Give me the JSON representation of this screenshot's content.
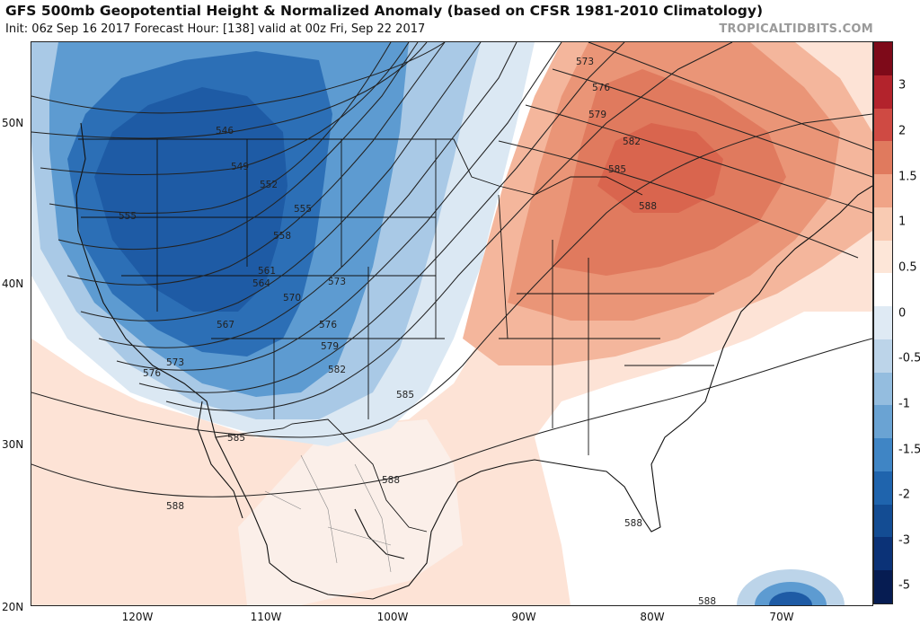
{
  "title": "GFS 500mb Geopotential Height & Normalized Anomaly (based on CFSR 1981-2010 Climatology)",
  "subtitle": "Init: 06z Sep 16 2017   Forecast Hour: [138]   valid at 00z Fri, Sep 22 2017",
  "brand": "TROPICALTIDBITS.COM",
  "latitude_labels": [
    "50N",
    "40N",
    "30N",
    "20N"
  ],
  "longitude_labels": [
    "120W",
    "110W",
    "100W",
    "90W",
    "80W",
    "70W"
  ],
  "colorbar": {
    "labels": [
      "3",
      "2",
      "1.5",
      "1",
      "0.5",
      "0",
      "-0.5",
      "-1",
      "-1.5",
      "-2",
      "-3",
      "-5"
    ],
    "colors": [
      "#7e0a19",
      "#b3232c",
      "#cf4a43",
      "#e07a5e",
      "#f0a487",
      "#f9cbb3",
      "#fde6d8",
      "#ffffff",
      "#dfeaf4",
      "#bcd4e9",
      "#94bddf",
      "#6aa3d3",
      "#3f85c5",
      "#1f64ad",
      "#134c93",
      "#0b3277",
      "#061c52"
    ]
  },
  "contour_labels": [
    "546",
    "549",
    "552",
    "555",
    "555",
    "558",
    "561",
    "564",
    "567",
    "570",
    "573",
    "573",
    "576",
    "576",
    "579",
    "582",
    "585",
    "585",
    "588",
    "588",
    "588",
    "588",
    "588",
    "573",
    "576",
    "579",
    "582",
    "585",
    "588"
  ],
  "colors": {
    "strong_negative": "#1d5ea8",
    "negative": "#5a9bd0",
    "weak_negative": "#b9d4ea",
    "weak_positive": "#f7c3ad",
    "positive": "#e8876c",
    "strong_positive": "#d9624c",
    "neutral": "#ffffff"
  }
}
